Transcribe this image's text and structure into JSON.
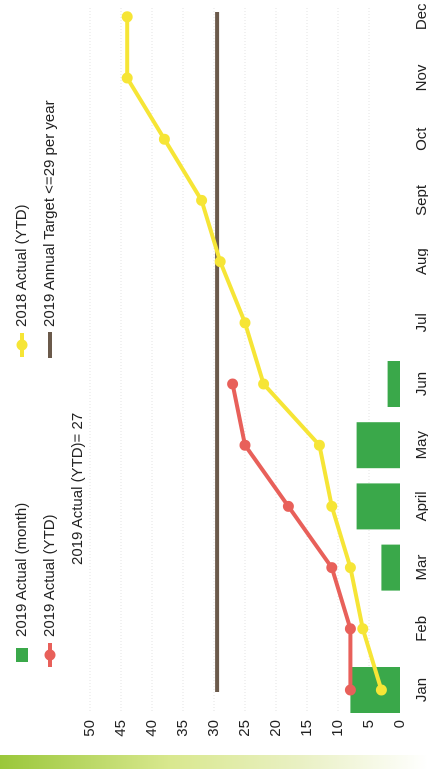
{
  "chart_data": {
    "type": "bar+line",
    "orientation": "rotated-90-ccw",
    "categories": [
      "Jan",
      "Feb",
      "Mar",
      "April",
      "May",
      "Jun",
      "Jul",
      "Aug",
      "Sept",
      "Oct",
      "Nov",
      "Dec"
    ],
    "y_ticks": [
      "0",
      "5",
      "10",
      "15",
      "20",
      "25",
      "30",
      "35",
      "40",
      "45",
      "50"
    ],
    "ylim": [
      0,
      50
    ],
    "grid": true,
    "series": [
      {
        "name": "2019 Actual (month)",
        "kind": "bar",
        "color": "#3aa84a",
        "values": [
          8,
          0,
          3,
          7,
          7,
          2,
          null,
          null,
          null,
          null,
          null,
          null
        ]
      },
      {
        "name": "2019 Actual (YTD)",
        "kind": "line",
        "color": "#e8605a",
        "values": [
          8,
          8,
          11,
          18,
          25,
          27,
          null,
          null,
          null,
          null,
          null,
          null
        ]
      },
      {
        "name": "2018 Actual (YTD)",
        "kind": "line",
        "color": "#f6e536",
        "values": [
          3,
          6,
          8,
          11,
          13,
          22,
          25,
          29,
          32,
          38,
          44,
          44
        ]
      },
      {
        "name": "2019 Annual Target <=29 per year",
        "kind": "target",
        "color": "#6b5a4b",
        "value": 29.5
      }
    ],
    "annotation": "2019 Actual (YTD)= 27",
    "legend_position": "top"
  }
}
